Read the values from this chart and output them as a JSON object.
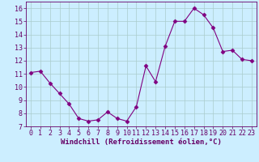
{
  "x": [
    0,
    1,
    2,
    3,
    4,
    5,
    6,
    7,
    8,
    9,
    10,
    11,
    12,
    13,
    14,
    15,
    16,
    17,
    18,
    19,
    20,
    21,
    22,
    23
  ],
  "y": [
    11.1,
    11.2,
    10.3,
    9.5,
    8.7,
    7.6,
    7.4,
    7.5,
    8.1,
    7.6,
    7.4,
    8.5,
    11.6,
    10.4,
    13.1,
    15.0,
    15.0,
    16.0,
    15.5,
    14.5,
    12.7,
    12.8,
    12.1,
    12.0
  ],
  "line_color": "#800080",
  "marker": "D",
  "marker_size": 2.5,
  "bg_color": "#cceeff",
  "grid_color": "#aacccc",
  "xlim": [
    -0.5,
    23.5
  ],
  "ylim": [
    7,
    16.5
  ],
  "yticks": [
    7,
    8,
    9,
    10,
    11,
    12,
    13,
    14,
    15,
    16
  ],
  "xticks": [
    0,
    1,
    2,
    3,
    4,
    5,
    6,
    7,
    8,
    9,
    10,
    11,
    12,
    13,
    14,
    15,
    16,
    17,
    18,
    19,
    20,
    21,
    22,
    23
  ],
  "tick_label_size": 6.0,
  "xlabel": "Windchill (Refroidissement éolien,°C)",
  "xlabel_size": 6.5,
  "axis_label_color": "#660066"
}
